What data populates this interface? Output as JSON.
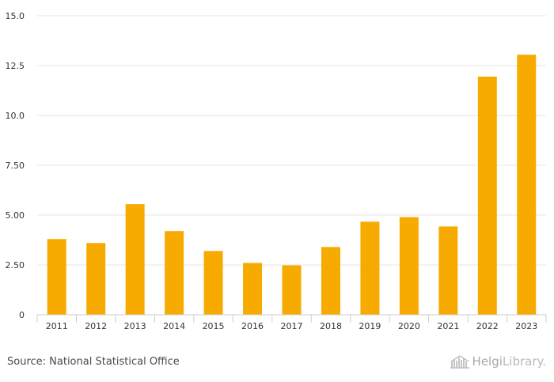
{
  "chart_data": {
    "type": "bar",
    "title": "",
    "xlabel": "",
    "ylabel": "",
    "categories": [
      "2011",
      "2012",
      "2013",
      "2014",
      "2015",
      "2016",
      "2017",
      "2018",
      "2019",
      "2020",
      "2021",
      "2022",
      "2023"
    ],
    "values": [
      3.8,
      3.6,
      5.55,
      4.2,
      3.2,
      2.6,
      2.48,
      3.4,
      4.67,
      4.9,
      4.43,
      11.95,
      13.05
    ],
    "ylim": [
      0,
      15
    ],
    "yticks": [
      0,
      2.5,
      5,
      7.5,
      10,
      12.5,
      15
    ],
    "ytick_labels": [
      "0",
      "2.50",
      "5.00",
      "7.50",
      "10.0",
      "12.5",
      "15.0"
    ],
    "bar_color": "#f7ab00",
    "grid": true,
    "legend": "none"
  },
  "footer": {
    "source": "Source: National Statistical Office",
    "brand_helgi": "Helgi",
    "brand_library": "Library."
  }
}
